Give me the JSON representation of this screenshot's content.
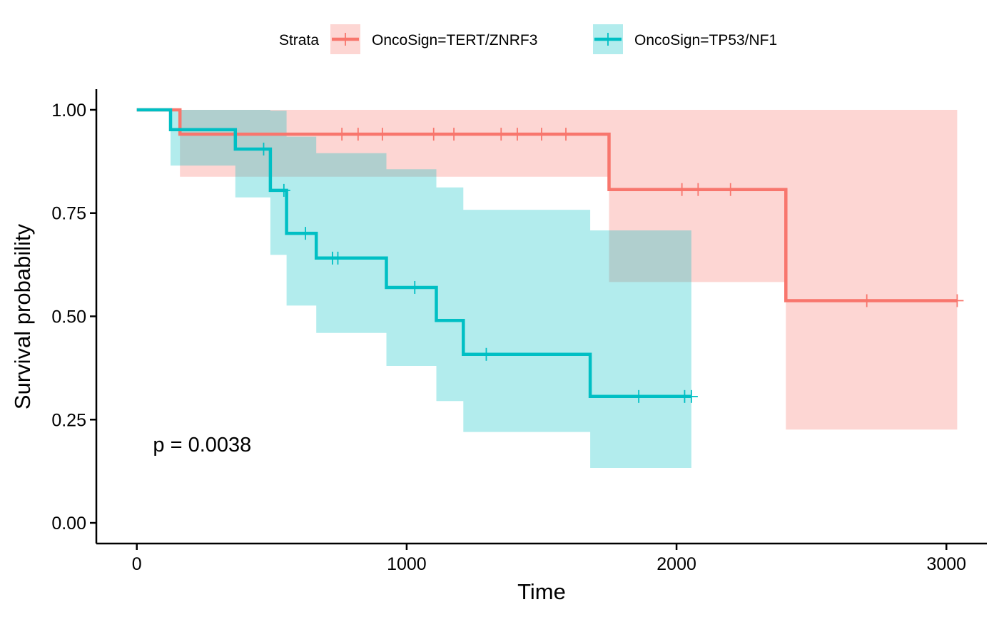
{
  "chart_data": {
    "type": "line",
    "subtype": "kaplan-meier",
    "xlabel": "Time",
    "ylabel": "Survival probability",
    "xlim": [
      -150,
      3150
    ],
    "ylim": [
      -0.05,
      1.05
    ],
    "x_ticks": [
      0,
      1000,
      2000,
      3000
    ],
    "y_ticks": [
      0.0,
      0.25,
      0.5,
      0.75,
      1.0
    ],
    "y_tick_labels": [
      "0.00",
      "0.25",
      "0.50",
      "0.75",
      "1.00"
    ],
    "grid": false,
    "legend": {
      "title": "Strata",
      "position": "top"
    },
    "annotation": {
      "text": "p = 0.0038",
      "x": 60,
      "y": 0.19
    },
    "series": [
      {
        "name": "OncoSign=TERT/ZNRF3",
        "color": "#F8766D",
        "fill": "#FBC4C0",
        "steps": [
          {
            "x": 0,
            "y": 1.0
          },
          {
            "x": 160,
            "y": 0.941
          },
          {
            "x": 1750,
            "y": 0.807
          },
          {
            "x": 2405,
            "y": 0.538
          },
          {
            "x": 3040,
            "y": 0.538
          }
        ],
        "ci": [
          {
            "x": 0,
            "lower": 1.0,
            "upper": 1.0
          },
          {
            "x": 160,
            "lower": 0.838,
            "upper": 1.0
          },
          {
            "x": 1750,
            "lower": 0.583,
            "upper": 1.0
          },
          {
            "x": 2405,
            "lower": 0.226,
            "upper": 1.0
          },
          {
            "x": 3040,
            "lower": 0.226,
            "upper": 1.0
          }
        ],
        "censor_times": [
          760,
          820,
          910,
          1100,
          1175,
          1350,
          1410,
          1500,
          1590,
          2020,
          2080,
          2200,
          2705,
          3040
        ]
      },
      {
        "name": "OncoSign=TP53/NF1",
        "color": "#00BFC4",
        "fill": "#A7E7E8",
        "steps": [
          {
            "x": 0,
            "y": 1.0
          },
          {
            "x": 125,
            "y": 0.952
          },
          {
            "x": 365,
            "y": 0.905
          },
          {
            "x": 495,
            "y": 0.805
          },
          {
            "x": 555,
            "y": 0.701
          },
          {
            "x": 665,
            "y": 0.641
          },
          {
            "x": 925,
            "y": 0.57
          },
          {
            "x": 1110,
            "y": 0.49
          },
          {
            "x": 1210,
            "y": 0.408
          },
          {
            "x": 1680,
            "y": 0.306
          },
          {
            "x": 2055,
            "y": 0.306
          }
        ],
        "ci": [
          {
            "x": 0,
            "lower": 1.0,
            "upper": 1.0
          },
          {
            "x": 125,
            "lower": 0.865,
            "upper": 1.0
          },
          {
            "x": 365,
            "lower": 0.788,
            "upper": 1.0
          },
          {
            "x": 495,
            "lower": 0.649,
            "upper": 0.998
          },
          {
            "x": 555,
            "lower": 0.526,
            "upper": 0.935
          },
          {
            "x": 665,
            "lower": 0.46,
            "upper": 0.895
          },
          {
            "x": 925,
            "lower": 0.38,
            "upper": 0.856
          },
          {
            "x": 1110,
            "lower": 0.295,
            "upper": 0.812
          },
          {
            "x": 1210,
            "lower": 0.22,
            "upper": 0.758
          },
          {
            "x": 1680,
            "lower": 0.133,
            "upper": 0.708
          },
          {
            "x": 2055,
            "lower": 0.133,
            "upper": 0.708
          }
        ],
        "censor_times": [
          470,
          545,
          625,
          725,
          745,
          1030,
          1295,
          1860,
          2030,
          2055
        ]
      }
    ]
  }
}
